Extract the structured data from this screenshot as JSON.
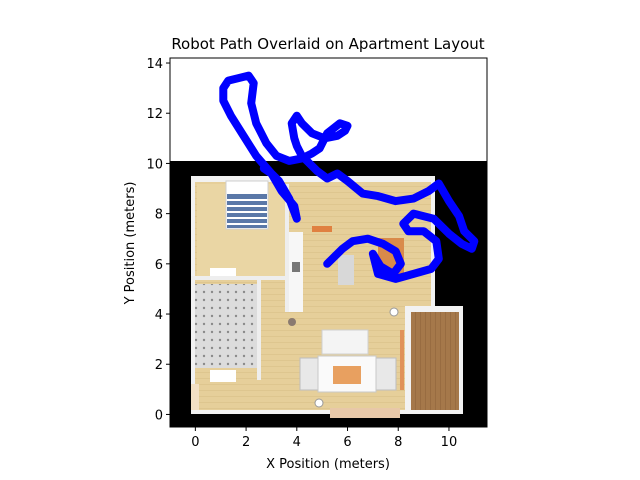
{
  "chart_data": {
    "type": "line",
    "title": "Robot Path Overlaid on Apartment Layout",
    "xlabel": "X Position (meters)",
    "ylabel": "Y Position (meters)",
    "xlim": [
      -1,
      11.5
    ],
    "ylim": [
      -0.5,
      14.2
    ],
    "xticks": [
      0,
      2,
      4,
      6,
      8,
      10
    ],
    "yticks": [
      0,
      2,
      4,
      6,
      8,
      10,
      12,
      14
    ],
    "grid": false,
    "background_image": "apartment-floor-plan",
    "series": [
      {
        "color": "#0000ff",
        "x": [
          5.2,
          5.4,
          5.8,
          6.2,
          6.8,
          7.4,
          7.9,
          8.1,
          7.8,
          7.3,
          7.0,
          7.2,
          7.9,
          8.6,
          9.3,
          9.6,
          9.5,
          9.0,
          8.4,
          8.2,
          8.6,
          9.4,
          10.0,
          10.5,
          10.9,
          11.0,
          10.6,
          10.4,
          10.0,
          9.6,
          9.2,
          8.6,
          7.9,
          7.2,
          6.6,
          6.0,
          5.6,
          5.2,
          4.8,
          4.5,
          4.2,
          4.0,
          3.9,
          3.8,
          4.0,
          4.2,
          4.6,
          5.1,
          5.6,
          5.9,
          6.0,
          5.7,
          5.2,
          4.9,
          4.6,
          4.2,
          3.7,
          3.2,
          2.8,
          2.4,
          2.2,
          2.3,
          2.1,
          1.7,
          1.3,
          1.1,
          1.1,
          1.4,
          1.9,
          2.4,
          3.0,
          3.4,
          3.9,
          4.0,
          3.7,
          3.3,
          3.0,
          2.7
        ],
        "y": [
          6.0,
          6.2,
          6.6,
          6.9,
          7.0,
          6.8,
          6.5,
          6.0,
          5.6,
          5.9,
          6.4,
          5.6,
          5.4,
          5.6,
          5.8,
          6.2,
          6.9,
          7.3,
          7.3,
          7.6,
          8.0,
          7.8,
          7.2,
          6.8,
          6.6,
          6.9,
          7.3,
          7.9,
          8.5,
          9.2,
          8.9,
          8.6,
          8.5,
          8.7,
          8.8,
          9.3,
          9.6,
          9.4,
          9.7,
          10.0,
          10.3,
          10.7,
          11.0,
          11.6,
          11.9,
          11.6,
          11.2,
          11.0,
          11.1,
          11.3,
          11.5,
          11.6,
          11.2,
          10.6,
          10.4,
          10.2,
          10.1,
          10.3,
          10.8,
          11.6,
          12.4,
          13.2,
          13.5,
          13.4,
          13.3,
          13.0,
          12.5,
          11.9,
          11.1,
          10.3,
          9.6,
          8.9,
          8.3,
          7.8,
          8.6,
          9.3,
          9.6,
          9.8
        ]
      }
    ]
  }
}
